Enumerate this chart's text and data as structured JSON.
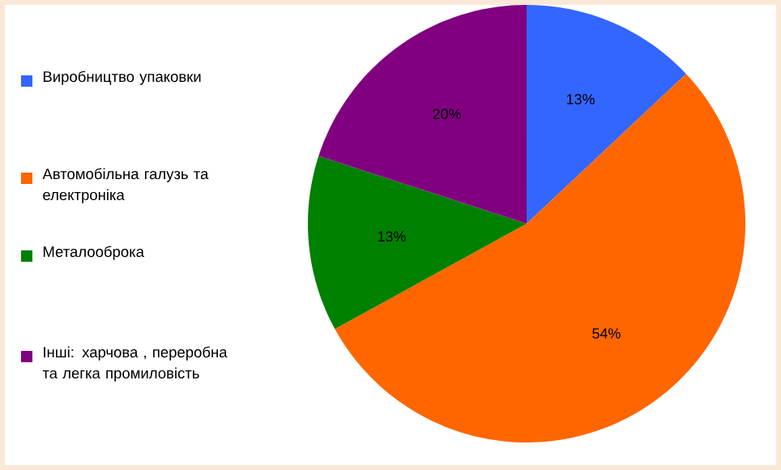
{
  "chart_data": {
    "type": "pie",
    "categories": [
      "Виробництво упаковки",
      "Автомобільна галузь та електроніка",
      "Металооброка",
      "Інші: харчова , переробна та легка промиловість"
    ],
    "values": [
      13,
      54,
      13,
      20
    ],
    "value_labels": [
      "13%",
      "54%",
      "13%",
      "20%"
    ],
    "colors": [
      "#3366ff",
      "#ff6600",
      "#008000",
      "#800080"
    ],
    "legend": "left"
  }
}
